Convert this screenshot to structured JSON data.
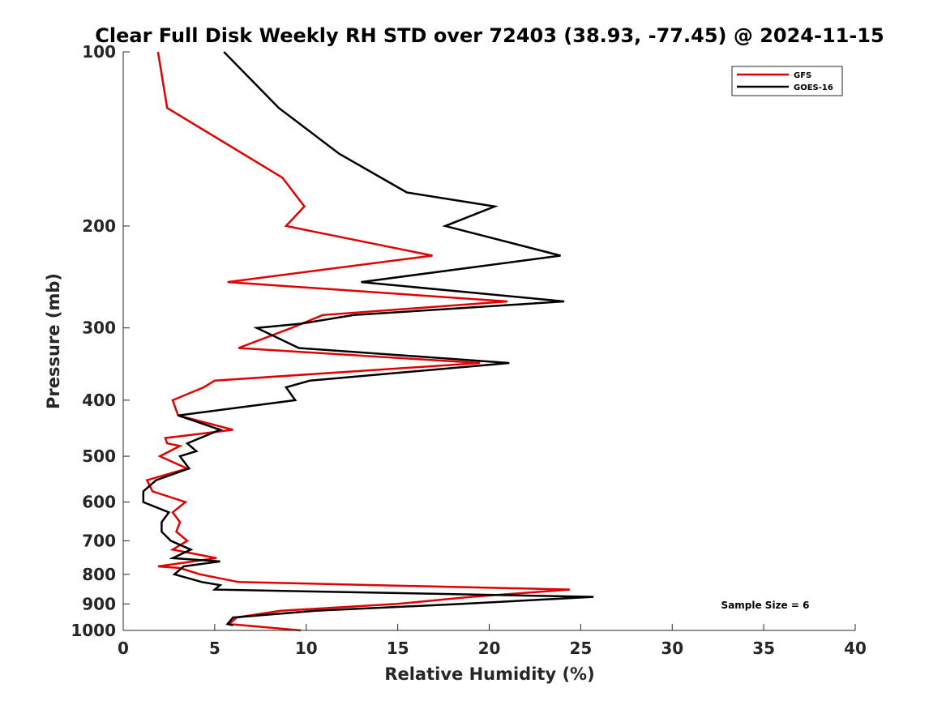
{
  "chart_data": {
    "type": "line",
    "title": "Clear Full Disk Weekly RH STD over 72403 (38.93, -77.45) @ 2024-11-15",
    "xlabel": "Relative Humidity (%)",
    "ylabel": "Pressure (mb)",
    "xlim": [
      0,
      40
    ],
    "ylim": [
      100,
      1000
    ],
    "y_scale": "log",
    "y_reversed": true,
    "x_ticks": [
      0,
      5,
      10,
      15,
      20,
      25,
      30,
      35,
      40
    ],
    "x_tick_labels": [
      "0",
      "5",
      "10",
      "15",
      "20",
      "25",
      "30",
      "35",
      "40"
    ],
    "y_ticks": [
      100,
      200,
      300,
      400,
      500,
      600,
      700,
      800,
      900,
      1000
    ],
    "y_tick_labels": [
      "100",
      "200",
      "300",
      "400",
      "500",
      "600",
      "700",
      "800",
      "900",
      "1000"
    ],
    "grid": false,
    "legend_position": "top-right",
    "annotation": "Sample Size = 6",
    "series": [
      {
        "name": "GFS",
        "color": "#e00000",
        "points": [
          [
            1.9,
            100
          ],
          [
            2.4,
            125
          ],
          [
            8.7,
            165
          ],
          [
            9.9,
            185
          ],
          [
            8.9,
            200
          ],
          [
            16.9,
            225
          ],
          [
            5.7,
            250
          ],
          [
            21.0,
            270
          ],
          [
            10.9,
            285
          ],
          [
            9.2,
            300
          ],
          [
            6.3,
            325
          ],
          [
            19.5,
            345
          ],
          [
            5.0,
            370
          ],
          [
            4.4,
            380
          ],
          [
            2.7,
            400
          ],
          [
            3.0,
            425
          ],
          [
            6.0,
            450
          ],
          [
            2.3,
            465
          ],
          [
            2.4,
            475
          ],
          [
            3.1,
            480
          ],
          [
            2.0,
            500
          ],
          [
            3.5,
            525
          ],
          [
            1.3,
            550
          ],
          [
            1.6,
            575
          ],
          [
            3.4,
            600
          ],
          [
            2.7,
            625
          ],
          [
            3.1,
            650
          ],
          [
            2.9,
            675
          ],
          [
            3.5,
            700
          ],
          [
            2.7,
            725
          ],
          [
            5.1,
            750
          ],
          [
            1.9,
            775
          ],
          [
            3.1,
            780
          ],
          [
            4.2,
            800
          ],
          [
            6.3,
            825
          ],
          [
            24.4,
            850
          ],
          [
            19.0,
            875
          ],
          [
            15.0,
            900
          ],
          [
            8.6,
            925
          ],
          [
            6.2,
            950
          ],
          [
            5.8,
            975
          ],
          [
            9.7,
            1000
          ]
        ]
      },
      {
        "name": "GOES-16",
        "color": "#000000",
        "points": [
          [
            5.5,
            100
          ],
          [
            8.5,
            125
          ],
          [
            11.8,
            150
          ],
          [
            15.5,
            175
          ],
          [
            20.3,
            185
          ],
          [
            17.6,
            200
          ],
          [
            23.9,
            225
          ],
          [
            13.0,
            250
          ],
          [
            24.1,
            270
          ],
          [
            12.6,
            285
          ],
          [
            9.7,
            295
          ],
          [
            7.3,
            300
          ],
          [
            9.6,
            325
          ],
          [
            21.1,
            345
          ],
          [
            10.2,
            370
          ],
          [
            8.9,
            380
          ],
          [
            9.4,
            400
          ],
          [
            3.0,
            425
          ],
          [
            5.3,
            450
          ],
          [
            3.5,
            475
          ],
          [
            4.0,
            490
          ],
          [
            3.1,
            500
          ],
          [
            3.6,
            525
          ],
          [
            1.8,
            550
          ],
          [
            1.1,
            575
          ],
          [
            1.1,
            600
          ],
          [
            2.5,
            625
          ],
          [
            2.1,
            650
          ],
          [
            2.1,
            675
          ],
          [
            2.6,
            700
          ],
          [
            3.7,
            725
          ],
          [
            2.7,
            750
          ],
          [
            5.3,
            760
          ],
          [
            3.3,
            775
          ],
          [
            2.8,
            800
          ],
          [
            4.3,
            825
          ],
          [
            5.3,
            835
          ],
          [
            5.0,
            850
          ],
          [
            25.7,
            875
          ],
          [
            18.5,
            900
          ],
          [
            10.5,
            925
          ],
          [
            6.0,
            950
          ],
          [
            5.7,
            975
          ],
          [
            6.0,
            980
          ]
        ]
      }
    ]
  }
}
